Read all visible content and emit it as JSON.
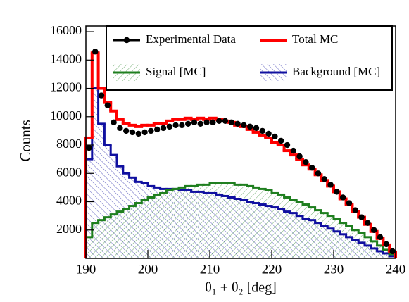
{
  "chart_data": {
    "type": "histogram",
    "xlabel": "θ₁ + θ₂ [deg]",
    "ylabel": "Counts",
    "bins": [
      190,
      191,
      192,
      193,
      194,
      195,
      196,
      197,
      198,
      199,
      200,
      201,
      202,
      203,
      204,
      205,
      206,
      207,
      208,
      209,
      210,
      211,
      212,
      213,
      214,
      215,
      216,
      217,
      218,
      219,
      220,
      221,
      222,
      223,
      224,
      225,
      226,
      227,
      228,
      229,
      230,
      231,
      232,
      233,
      234,
      235,
      236,
      237,
      238,
      239,
      240
    ],
    "xlim": [
      190,
      240
    ],
    "ylim": [
      0,
      16400
    ],
    "xticks": [
      190,
      200,
      210,
      220,
      230,
      240
    ],
    "yticks": [
      2000,
      4000,
      6000,
      8000,
      10000,
      12000,
      14000,
      16000
    ],
    "legend": "top-right",
    "series": [
      {
        "name": "Experimental Data",
        "color": "#000000",
        "style": "points",
        "values": [
          7800,
          14600,
          11500,
          10800,
          9600,
          9200,
          9000,
          8900,
          8800,
          8900,
          9000,
          9100,
          9200,
          9300,
          9400,
          9400,
          9500,
          9600,
          9500,
          9600,
          9600,
          9700,
          9700,
          9600,
          9500,
          9400,
          9300,
          9200,
          9000,
          8800,
          8600,
          8300,
          8000,
          7600,
          7200,
          6800,
          6400,
          6000,
          5600,
          5200,
          4700,
          4300,
          3900,
          3400,
          2900,
          2500,
          2000,
          1500,
          1000,
          500
        ]
      },
      {
        "name": "Total MC",
        "color": "#ff0000",
        "style": "step",
        "values": [
          8500,
          14500,
          12000,
          11000,
          10400,
          9800,
          9500,
          9400,
          9300,
          9400,
          9400,
          9500,
          9500,
          9700,
          9800,
          9800,
          9900,
          9800,
          9900,
          9800,
          9900,
          9800,
          9700,
          9600,
          9400,
          9300,
          9100,
          8900,
          8700,
          8500,
          8200,
          8000,
          7600,
          7300,
          7000,
          6600,
          6300,
          5900,
          5500,
          5100,
          4700,
          4200,
          3800,
          3300,
          2900,
          2400,
          1900,
          1400,
          950,
          450
        ]
      },
      {
        "name": "Signal [MC]",
        "color": "#1f7f1f",
        "style": "hatched",
        "values": [
          1500,
          2500,
          2700,
          2900,
          3100,
          3300,
          3500,
          3700,
          3900,
          4100,
          4300,
          4500,
          4600,
          4800,
          4900,
          5000,
          5100,
          5100,
          5200,
          5200,
          5300,
          5300,
          5300,
          5300,
          5200,
          5200,
          5100,
          5000,
          4900,
          4800,
          4600,
          4500,
          4300,
          4100,
          4000,
          3800,
          3600,
          3400,
          3200,
          3000,
          2800,
          2500,
          2300,
          2000,
          1800,
          1500,
          1200,
          900,
          600,
          300
        ]
      },
      {
        "name": "Background [MC]",
        "color": "#1010a0",
        "style": "hatched",
        "values": [
          7000,
          12000,
          9500,
          8000,
          7300,
          6500,
          6000,
          5700,
          5400,
          5300,
          5100,
          5000,
          4900,
          4900,
          4900,
          4800,
          4800,
          4700,
          4700,
          4600,
          4600,
          4500,
          4400,
          4300,
          4200,
          4100,
          4000,
          3900,
          3800,
          3700,
          3600,
          3500,
          3300,
          3200,
          3000,
          2800,
          2700,
          2500,
          2300,
          2100,
          1900,
          1700,
          1500,
          1300,
          1100,
          900,
          700,
          500,
          350,
          150
        ]
      }
    ]
  }
}
